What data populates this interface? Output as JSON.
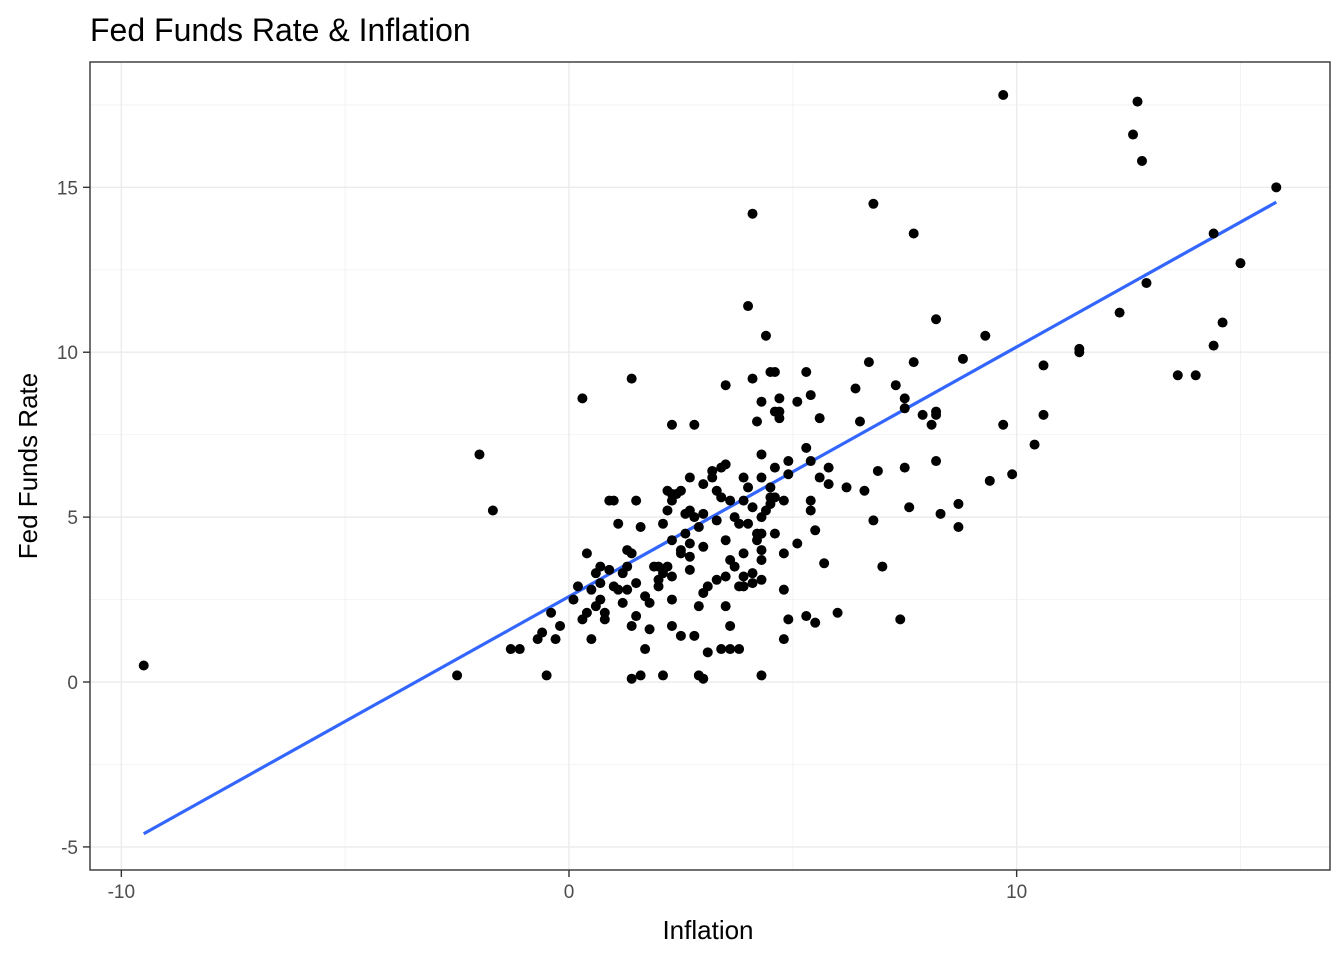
{
  "chart_data": {
    "type": "scatter",
    "title": "Fed Funds Rate & Inflation",
    "xlabel": "Inflation",
    "ylabel": "Fed Funds Rate",
    "xlim": [
      -10.7,
      17
    ],
    "ylim": [
      -5.7,
      18.8
    ],
    "x_ticks": [
      -10,
      0,
      10
    ],
    "x_tick_labels": [
      "-10",
      "0",
      "10"
    ],
    "y_ticks": [
      -5,
      0,
      5,
      10,
      15
    ],
    "y_tick_labels": [
      "-5",
      "0",
      "5",
      "10",
      "15"
    ],
    "grid": true,
    "legend": "none",
    "point_color": "#000000",
    "trend_line": {
      "type": "linear fit",
      "color": "#3366ff",
      "x": [
        -9.5,
        15.8
      ],
      "y": [
        -4.6,
        14.55
      ]
    },
    "points": [
      [
        -9.5,
        0.5
      ],
      [
        -2.5,
        0.2
      ],
      [
        -2.0,
        6.9
      ],
      [
        -1.7,
        5.2
      ],
      [
        -1.3,
        1.0
      ],
      [
        -1.1,
        1.0
      ],
      [
        -0.7,
        1.3
      ],
      [
        -0.6,
        1.5
      ],
      [
        -0.5,
        0.2
      ],
      [
        -0.4,
        2.1
      ],
      [
        -0.3,
        1.3
      ],
      [
        -0.2,
        1.7
      ],
      [
        0.1,
        2.5
      ],
      [
        0.2,
        2.9
      ],
      [
        0.3,
        8.6
      ],
      [
        0.3,
        1.9
      ],
      [
        0.4,
        3.9
      ],
      [
        0.4,
        2.1
      ],
      [
        0.5,
        2.8
      ],
      [
        0.5,
        1.3
      ],
      [
        0.6,
        2.3
      ],
      [
        0.6,
        3.3
      ],
      [
        0.7,
        3.0
      ],
      [
        0.7,
        2.5
      ],
      [
        0.7,
        3.5
      ],
      [
        0.8,
        1.9
      ],
      [
        0.8,
        2.1
      ],
      [
        0.9,
        5.5
      ],
      [
        0.9,
        3.4
      ],
      [
        1.0,
        5.5
      ],
      [
        1.0,
        2.9
      ],
      [
        1.1,
        2.8
      ],
      [
        1.1,
        4.8
      ],
      [
        1.2,
        3.3
      ],
      [
        1.2,
        2.4
      ],
      [
        1.3,
        4.0
      ],
      [
        1.3,
        2.8
      ],
      [
        1.3,
        3.5
      ],
      [
        1.4,
        9.2
      ],
      [
        1.4,
        3.9
      ],
      [
        1.4,
        1.7
      ],
      [
        1.4,
        0.1
      ],
      [
        1.5,
        5.5
      ],
      [
        1.5,
        3.0
      ],
      [
        1.5,
        2.0
      ],
      [
        1.6,
        4.7
      ],
      [
        1.6,
        0.2
      ],
      [
        1.7,
        2.6
      ],
      [
        1.7,
        1.0
      ],
      [
        1.8,
        1.6
      ],
      [
        1.8,
        2.4
      ],
      [
        1.9,
        3.5
      ],
      [
        2.0,
        3.1
      ],
      [
        2.0,
        3.5
      ],
      [
        2.0,
        2.9
      ],
      [
        2.1,
        4.8
      ],
      [
        2.1,
        3.3
      ],
      [
        2.1,
        0.2
      ],
      [
        2.2,
        5.8
      ],
      [
        2.2,
        5.2
      ],
      [
        2.2,
        3.5
      ],
      [
        2.3,
        7.8
      ],
      [
        2.3,
        5.5
      ],
      [
        2.3,
        5.7
      ],
      [
        2.3,
        4.3
      ],
      [
        2.3,
        3.2
      ],
      [
        2.3,
        2.5
      ],
      [
        2.3,
        1.7
      ],
      [
        2.4,
        5.7
      ],
      [
        2.5,
        5.8
      ],
      [
        2.5,
        4.0
      ],
      [
        2.5,
        3.9
      ],
      [
        2.5,
        1.4
      ],
      [
        2.6,
        5.1
      ],
      [
        2.6,
        4.5
      ],
      [
        2.7,
        6.2
      ],
      [
        2.7,
        5.2
      ],
      [
        2.7,
        4.2
      ],
      [
        2.7,
        3.8
      ],
      [
        2.7,
        3.4
      ],
      [
        2.8,
        7.8
      ],
      [
        2.8,
        5.0
      ],
      [
        2.8,
        1.4
      ],
      [
        2.9,
        4.7
      ],
      [
        2.9,
        2.3
      ],
      [
        2.9,
        0.2
      ],
      [
        3.0,
        6.0
      ],
      [
        3.0,
        5.1
      ],
      [
        3.0,
        4.1
      ],
      [
        3.0,
        2.7
      ],
      [
        3.0,
        0.1
      ],
      [
        3.1,
        2.9
      ],
      [
        3.1,
        0.9
      ],
      [
        3.2,
        6.4
      ],
      [
        3.2,
        6.2
      ],
      [
        3.3,
        5.8
      ],
      [
        3.3,
        4.9
      ],
      [
        3.3,
        3.1
      ],
      [
        3.4,
        5.6
      ],
      [
        3.4,
        6.5
      ],
      [
        3.4,
        1.0
      ],
      [
        3.5,
        4.3
      ],
      [
        3.5,
        3.2
      ],
      [
        3.5,
        2.3
      ],
      [
        3.5,
        9.0
      ],
      [
        3.5,
        6.6
      ],
      [
        3.6,
        5.5
      ],
      [
        3.6,
        3.7
      ],
      [
        3.6,
        1.7
      ],
      [
        3.6,
        1.0
      ],
      [
        3.7,
        5.0
      ],
      [
        3.7,
        3.5
      ],
      [
        3.8,
        4.8
      ],
      [
        3.8,
        2.9
      ],
      [
        3.8,
        1.0
      ],
      [
        3.9,
        6.2
      ],
      [
        3.9,
        5.5
      ],
      [
        3.9,
        3.9
      ],
      [
        3.9,
        3.2
      ],
      [
        3.9,
        2.9
      ],
      [
        4.0,
        11.4
      ],
      [
        4.0,
        5.9
      ],
      [
        4.0,
        4.8
      ],
      [
        4.1,
        14.2
      ],
      [
        4.1,
        9.2
      ],
      [
        4.1,
        5.3
      ],
      [
        4.1,
        3.0
      ],
      [
        4.1,
        3.3
      ],
      [
        4.2,
        4.3
      ],
      [
        4.2,
        7.9
      ],
      [
        4.2,
        4.5
      ],
      [
        4.3,
        8.5
      ],
      [
        4.3,
        6.9
      ],
      [
        4.3,
        6.2
      ],
      [
        4.3,
        5.0
      ],
      [
        4.3,
        4.5
      ],
      [
        4.3,
        4.0
      ],
      [
        4.3,
        3.7
      ],
      [
        4.3,
        3.1
      ],
      [
        4.3,
        0.2
      ],
      [
        4.4,
        10.5
      ],
      [
        4.4,
        5.2
      ],
      [
        4.5,
        9.4
      ],
      [
        4.5,
        5.4
      ],
      [
        4.5,
        5.6
      ],
      [
        4.5,
        5.9
      ],
      [
        4.6,
        4.5
      ],
      [
        4.6,
        9.4
      ],
      [
        4.6,
        8.2
      ],
      [
        4.6,
        6.5
      ],
      [
        4.6,
        5.6
      ],
      [
        4.7,
        8.2
      ],
      [
        4.7,
        8.0
      ],
      [
        4.7,
        8.6
      ],
      [
        4.8,
        5.5
      ],
      [
        4.8,
        3.9
      ],
      [
        4.8,
        2.8
      ],
      [
        4.8,
        1.3
      ],
      [
        4.9,
        6.7
      ],
      [
        4.9,
        6.3
      ],
      [
        4.9,
        1.9
      ],
      [
        5.1,
        8.5
      ],
      [
        5.1,
        4.2
      ],
      [
        5.3,
        9.4
      ],
      [
        5.3,
        7.1
      ],
      [
        5.3,
        2.0
      ],
      [
        5.4,
        6.7
      ],
      [
        5.4,
        5.5
      ],
      [
        5.4,
        5.2
      ],
      [
        5.4,
        8.7
      ],
      [
        5.5,
        4.6
      ],
      [
        5.5,
        1.8
      ],
      [
        5.6,
        8.0
      ],
      [
        5.6,
        6.2
      ],
      [
        5.7,
        3.6
      ],
      [
        5.8,
        6.5
      ],
      [
        5.8,
        6.0
      ],
      [
        6.0,
        2.1
      ],
      [
        6.2,
        5.9
      ],
      [
        6.4,
        8.9
      ],
      [
        6.5,
        7.9
      ],
      [
        6.6,
        5.8
      ],
      [
        6.7,
        9.7
      ],
      [
        6.8,
        14.5
      ],
      [
        6.8,
        4.9
      ],
      [
        6.9,
        6.4
      ],
      [
        7.0,
        3.5
      ],
      [
        7.3,
        9.0
      ],
      [
        7.4,
        1.9
      ],
      [
        7.5,
        6.5
      ],
      [
        7.5,
        8.6
      ],
      [
        7.5,
        8.3
      ],
      [
        7.6,
        5.3
      ],
      [
        7.7,
        9.7
      ],
      [
        7.7,
        13.6
      ],
      [
        7.9,
        8.1
      ],
      [
        8.1,
        7.8
      ],
      [
        8.2,
        8.2
      ],
      [
        8.2,
        8.1
      ],
      [
        8.2,
        6.7
      ],
      [
        8.2,
        11.0
      ],
      [
        8.3,
        5.1
      ],
      [
        8.7,
        4.7
      ],
      [
        8.7,
        5.4
      ],
      [
        8.8,
        9.8
      ],
      [
        9.3,
        10.5
      ],
      [
        9.4,
        6.1
      ],
      [
        9.7,
        17.8
      ],
      [
        9.7,
        7.8
      ],
      [
        9.9,
        6.3
      ],
      [
        10.4,
        7.2
      ],
      [
        10.6,
        8.1
      ],
      [
        10.6,
        9.6
      ],
      [
        11.4,
        10.1
      ],
      [
        11.4,
        10.0
      ],
      [
        12.3,
        11.2
      ],
      [
        12.6,
        16.6
      ],
      [
        12.7,
        17.6
      ],
      [
        12.8,
        15.8
      ],
      [
        12.9,
        12.1
      ],
      [
        13.6,
        9.3
      ],
      [
        14.0,
        9.3
      ],
      [
        14.4,
        13.6
      ],
      [
        14.4,
        10.2
      ],
      [
        14.6,
        10.9
      ],
      [
        15.0,
        12.7
      ],
      [
        15.8,
        15.0
      ]
    ]
  }
}
